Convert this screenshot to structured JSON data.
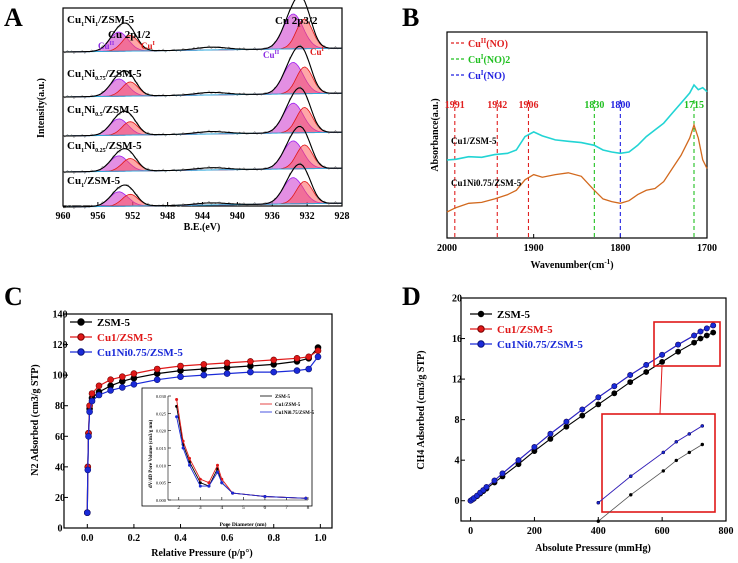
{
  "chart_data": [
    {
      "panel": "A",
      "type": "line",
      "title": "",
      "xlabel": "B.E.(eV)",
      "ylabel": "Intensity(a.u.)",
      "xlim": [
        960,
        928
      ],
      "x_ticks": [
        960,
        956,
        952,
        948,
        944,
        940,
        936,
        932,
        928
      ],
      "x_tick_labels": [
        "960",
        "956",
        "952",
        "948",
        "944",
        "940",
        "936",
        "932",
        "928"
      ],
      "peak_labels": [
        "Cu 2p1/2",
        "Cu 2p3/2"
      ],
      "component_labels": [
        "Cu",
        "II",
        "Cu",
        "I",
        "Cu",
        "II",
        "Cu",
        "I"
      ],
      "main_peaks_ev": [
        952.7,
        932.8
      ],
      "series": [
        {
          "name": "Cu1Ni1/ZSM-5",
          "name_main": "Cu",
          "sub1": "1",
          "mid": "Ni",
          "sub2": "1",
          "suffix": "/ZSM-5",
          "peak_height": 1.0
        },
        {
          "name": "Cu1Ni0.75/ZSM-5",
          "name_main": "Cu",
          "sub1": "1",
          "mid": "Ni",
          "sub2": "0.75",
          "suffix": "/ZSM-5",
          "peak_height": 0.9
        },
        {
          "name": "Cu1Ni0.5/ZSM-5",
          "name_main": "Cu",
          "sub1": "1",
          "mid": "Ni",
          "sub2": "0.5",
          "suffix": "/ZSM-5",
          "peak_height": 0.85
        },
        {
          "name": "Cu1Ni0.25/ZSM-5",
          "name_main": "Cu",
          "sub1": "1",
          "mid": "Ni",
          "sub2": "0.25",
          "suffix": "/ZSM-5",
          "peak_height": 0.8
        },
        {
          "name": "Cu1/ZSM-5",
          "name_main": "Cu",
          "sub1": "1",
          "mid": "",
          "sub2": "",
          "suffix": "/ZSM-5",
          "peak_height": 0.75
        }
      ]
    },
    {
      "panel": "B",
      "type": "line",
      "xlabel": "Wavenumber(cm-1)",
      "xlabel_main": "Wavenumber(cm",
      "xlabel_sup": "-1",
      "xlabel_end": ")",
      "ylabel": "Absorbance(a.u.)",
      "xlim": [
        2000,
        1700
      ],
      "x_ticks": [
        2000,
        1900,
        1800,
        1700
      ],
      "x_tick_labels": [
        "2000",
        "1900",
        "1800",
        "1700"
      ],
      "legend": [
        {
          "main": "Cu",
          "sup": "II",
          "rest": "(NO)",
          "color": "#e02020"
        },
        {
          "main": "Cu",
          "sup": "I",
          "rest": "(NO)2",
          "color": "#20c020"
        },
        {
          "main": "Cu",
          "sup": "I",
          "rest": "(NO)",
          "color": "#2020e0"
        }
      ],
      "band_lines": [
        {
          "x": 1991,
          "label": "1991",
          "color": "#e02020"
        },
        {
          "x": 1942,
          "label": "1942",
          "color": "#e02020"
        },
        {
          "x": 1906,
          "label": "1906",
          "color": "#e02020"
        },
        {
          "x": 1830,
          "label": "1830",
          "color": "#20c020"
        },
        {
          "x": 1800,
          "label": "1800",
          "color": "#2020e0"
        },
        {
          "x": 1715,
          "label": "1715",
          "color": "#20c020"
        }
      ],
      "series": [
        {
          "name": "Cu1/ZSM-5",
          "color": "#22d4d4",
          "x": [
            2000,
            1990,
            1975,
            1960,
            1945,
            1930,
            1920,
            1910,
            1900,
            1890,
            1875,
            1860,
            1845,
            1830,
            1820,
            1810,
            1800,
            1790,
            1780,
            1770,
            1760,
            1750,
            1740,
            1730,
            1720,
            1715,
            1710,
            1705,
            1700
          ],
          "y": [
            0.0,
            0.01,
            0.05,
            0.04,
            0.08,
            0.1,
            0.15,
            0.35,
            0.42,
            0.36,
            0.3,
            0.28,
            0.26,
            0.22,
            0.15,
            0.12,
            0.1,
            0.12,
            0.22,
            0.35,
            0.45,
            0.55,
            0.7,
            0.85,
            1.0,
            1.12,
            1.05,
            1.08,
            1.02
          ]
        },
        {
          "name": "Cu1Ni0.75/ZSM-5",
          "color": "#d2691e",
          "x": [
            2000,
            1990,
            1975,
            1960,
            1945,
            1930,
            1920,
            1910,
            1900,
            1890,
            1875,
            1860,
            1845,
            1830,
            1820,
            1810,
            1800,
            1790,
            1780,
            1770,
            1760,
            1750,
            1740,
            1730,
            1720,
            1715,
            1710,
            1705,
            1700
          ],
          "y": [
            -0.55,
            -0.5,
            -0.45,
            -0.44,
            -0.4,
            -0.35,
            -0.3,
            -0.18,
            -0.12,
            -0.15,
            -0.12,
            -0.1,
            -0.14,
            -0.3,
            -0.4,
            -0.43,
            -0.45,
            -0.42,
            -0.35,
            -0.3,
            -0.28,
            -0.2,
            -0.05,
            0.1,
            0.3,
            0.45,
            0.3,
            0.05,
            -0.05
          ]
        }
      ]
    },
    {
      "panel": "C",
      "type": "line",
      "xlabel": "Relative Pressure (p/p°)",
      "ylabel": "N2 Adsorbed (cm3/g STP)",
      "xlim": [
        -0.1,
        1.05
      ],
      "ylim": [
        0,
        140
      ],
      "x_ticks": [
        0.0,
        0.2,
        0.4,
        0.6,
        0.8,
        1.0
      ],
      "x_tick_labels": [
        "0.0",
        "0.2",
        "0.4",
        "0.6",
        "0.8",
        "1.0"
      ],
      "y_ticks": [
        0,
        20,
        40,
        60,
        80,
        100,
        120,
        140
      ],
      "y_tick_labels": [
        "0",
        "20",
        "40",
        "60",
        "80",
        "100",
        "120",
        "140"
      ],
      "series": [
        {
          "name": "ZSM-5",
          "color": "#000000",
          "x": [
            0.0,
            0.002,
            0.005,
            0.01,
            0.02,
            0.05,
            0.1,
            0.15,
            0.2,
            0.3,
            0.4,
            0.5,
            0.6,
            0.7,
            0.8,
            0.9,
            0.95,
            0.99
          ],
          "y": [
            10,
            40,
            62,
            78,
            85,
            89,
            93,
            96,
            98,
            101,
            103,
            104,
            105,
            106,
            107,
            109,
            111,
            118
          ]
        },
        {
          "name": "Cu1/ZSM-5",
          "color": "#e01818",
          "x": [
            0.0,
            0.002,
            0.005,
            0.01,
            0.02,
            0.05,
            0.1,
            0.15,
            0.2,
            0.3,
            0.4,
            0.5,
            0.6,
            0.7,
            0.8,
            0.9,
            0.95,
            0.99
          ],
          "y": [
            10,
            40,
            62,
            80,
            88,
            93,
            97,
            99,
            101,
            104,
            106,
            107,
            108,
            109,
            110,
            111,
            112,
            116
          ]
        },
        {
          "name": "Cu1Ni0.75/ZSM-5",
          "color": "#1a2ad8",
          "x": [
            0.0,
            0.002,
            0.005,
            0.01,
            0.02,
            0.05,
            0.1,
            0.15,
            0.2,
            0.3,
            0.4,
            0.5,
            0.6,
            0.7,
            0.8,
            0.9,
            0.95,
            0.99
          ],
          "y": [
            10,
            38,
            60,
            76,
            83,
            87,
            90,
            92,
            94,
            97,
            99,
            100,
            101,
            102,
            102,
            103,
            104,
            112
          ]
        }
      ],
      "inset": {
        "xlabel": "Pore Diameter (nm)",
        "ylabel": "dV/dD Pore Volume (cm3/g nm)",
        "xlim": [
          1.5,
          8
        ],
        "ylim": [
          0,
          0.03
        ],
        "x_ticks": [
          2,
          3,
          4,
          5,
          6,
          7,
          8
        ],
        "x_tick_labels": [
          "2",
          "3",
          "4",
          "5",
          "6",
          "7",
          "8"
        ],
        "y_ticks": [
          0.0,
          0.005,
          0.01,
          0.015,
          0.02,
          0.025,
          0.03
        ],
        "y_tick_labels": [
          "0.000",
          "0.005",
          "0.010",
          "0.015",
          "0.020",
          "0.025",
          "0.030"
        ],
        "legend": [
          "ZSM-5",
          "Cu1/ZSM-5",
          "Cu1Ni0.75/ZSM-5"
        ],
        "series": [
          {
            "name": "ZSM-5",
            "color": "#000000",
            "x": [
              1.9,
              2.2,
              2.5,
              3.0,
              3.4,
              3.8,
              4.0,
              4.5,
              6.0,
              7.9
            ],
            "y": [
              0.027,
              0.016,
              0.011,
              0.005,
              0.004,
              0.009,
              0.005,
              0.002,
              0.001,
              0.0005
            ]
          },
          {
            "name": "Cu1/ZSM-5",
            "color": "#e01818",
            "x": [
              1.9,
              2.2,
              2.5,
              3.0,
              3.4,
              3.8,
              4.0,
              4.5,
              6.0,
              7.9
            ],
            "y": [
              0.029,
              0.017,
              0.012,
              0.006,
              0.005,
              0.01,
              0.006,
              0.002,
              0.001,
              0.0005
            ]
          },
          {
            "name": "Cu1Ni0.75/ZSM-5",
            "color": "#1a2ad8",
            "x": [
              1.9,
              2.2,
              2.5,
              3.0,
              3.4,
              3.8,
              4.0,
              4.5,
              6.0,
              7.9
            ],
            "y": [
              0.024,
              0.015,
              0.01,
              0.004,
              0.004,
              0.008,
              0.005,
              0.002,
              0.001,
              0.0005
            ]
          }
        ]
      }
    },
    {
      "panel": "D",
      "type": "line",
      "xlabel": "Absolute Pressure (mmHg)",
      "ylabel": "CH4 Adsorbed (cm3/g STP)",
      "xlim": [
        -30,
        800
      ],
      "ylim": [
        -2,
        20
      ],
      "x_ticks": [
        0,
        200,
        400,
        600,
        800
      ],
      "x_tick_labels": [
        "0",
        "200",
        "400",
        "600",
        "800"
      ],
      "y_ticks": [
        0,
        4,
        8,
        12,
        16,
        20
      ],
      "y_tick_labels": [
        "0",
        "4",
        "8",
        "12",
        "16",
        "20"
      ],
      "series": [
        {
          "name": "ZSM-5",
          "color": "#000000",
          "x": [
            0,
            5,
            10,
            20,
            30,
            40,
            50,
            75,
            100,
            150,
            200,
            250,
            300,
            350,
            400,
            450,
            500,
            550,
            600,
            650,
            700,
            720,
            740,
            760
          ],
          "y": [
            0,
            0.1,
            0.2,
            0.45,
            0.7,
            0.95,
            1.2,
            1.8,
            2.4,
            3.6,
            4.9,
            6.1,
            7.3,
            8.4,
            9.5,
            10.6,
            11.7,
            12.7,
            13.7,
            14.7,
            15.6,
            16.0,
            16.3,
            16.6
          ]
        },
        {
          "name": "Cu1/ZSM-5",
          "color": "#e01818",
          "x": [
            0,
            5,
            10,
            20,
            30,
            40,
            50,
            75,
            100,
            150,
            200,
            250,
            300,
            350,
            400,
            450,
            500,
            550,
            600,
            650,
            700,
            720,
            740,
            760
          ],
          "y": [
            0,
            0.12,
            0.25,
            0.5,
            0.8,
            1.05,
            1.35,
            2.0,
            2.7,
            4.0,
            5.3,
            6.6,
            7.8,
            9.0,
            10.2,
            11.3,
            12.4,
            13.4,
            14.4,
            15.4,
            16.3,
            16.7,
            17.0,
            17.3
          ]
        },
        {
          "name": "Cu1Ni0.75/ZSM-5",
          "color": "#1a2ad8",
          "x": [
            0,
            5,
            10,
            20,
            30,
            40,
            50,
            75,
            100,
            150,
            200,
            250,
            300,
            350,
            400,
            450,
            500,
            550,
            600,
            650,
            700,
            720,
            740,
            760
          ],
          "y": [
            0,
            0.12,
            0.25,
            0.5,
            0.8,
            1.05,
            1.35,
            2.0,
            2.7,
            4.0,
            5.3,
            6.6,
            7.8,
            9.0,
            10.2,
            11.3,
            12.4,
            13.4,
            14.4,
            15.4,
            16.3,
            16.7,
            17.0,
            17.3
          ]
        }
      ]
    }
  ],
  "panel_letters": {
    "a": "A",
    "b": "B",
    "c": "C",
    "d": "D"
  },
  "colors": {
    "black": "#000000",
    "red": "#e01818",
    "blue": "#1a2ad8",
    "cyan": "#22d4d4",
    "orange": "#d2691e",
    "green": "#20c020"
  }
}
